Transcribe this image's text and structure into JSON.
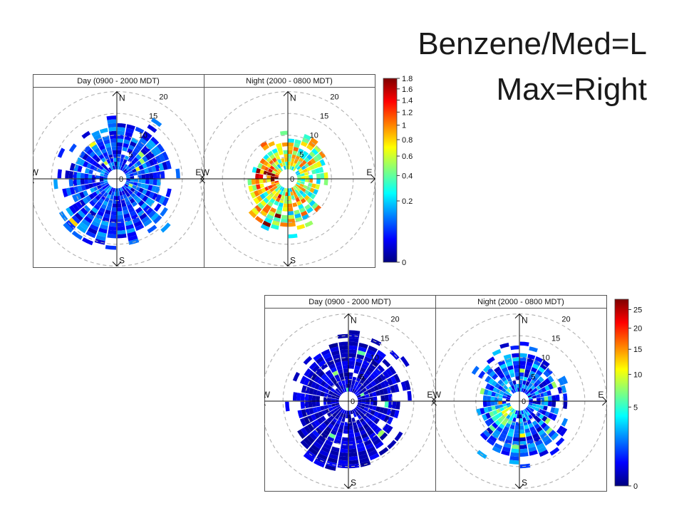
{
  "slide": {
    "title_line1": "Benzene/Med=L",
    "title_line2": "Max=Right"
  },
  "colormap": [
    "#00007f",
    "#0000ff",
    "#007fff",
    "#00ffff",
    "#7fff7f",
    "#ffff00",
    "#ff7f00",
    "#ff0000",
    "#7f0000"
  ],
  "chart_data": [
    {
      "type": "heatmap",
      "subtype": "polar",
      "panels": [
        "Day (0900 - 2000 MDT)",
        "Night (2000 - 0800 MDT)"
      ],
      "compass": [
        "N",
        "E",
        "S",
        "W"
      ],
      "radial_ticks": [
        "0",
        "5",
        "10",
        "15",
        "20"
      ],
      "radial_max": 20,
      "colorbar": {
        "ticks": [
          "1.8",
          "1.6",
          "1.4",
          "1.2",
          "1",
          "0.8",
          "0.6",
          "0.4",
          "0.2",
          "0"
        ],
        "range": [
          0,
          1.8
        ]
      },
      "day": {
        "extent": 11,
        "level": 0.18,
        "spread": 0.12
      },
      "night": {
        "extent": 8,
        "level": 0.55,
        "spread": 0.25,
        "hotspot_dir": 270
      }
    },
    {
      "type": "heatmap",
      "subtype": "polar",
      "panels": [
        "Day (0900 - 2000 MDT)",
        "Night (2000 - 0800 MDT)"
      ],
      "compass": [
        "N",
        "E",
        "S",
        "W"
      ],
      "radial_ticks": [
        "0",
        "5",
        "10",
        "15",
        "20"
      ],
      "radial_max": 20,
      "colorbar": {
        "ticks": [
          "25",
          "20",
          "15",
          "10",
          "5",
          "0"
        ],
        "range": [
          0,
          28
        ]
      },
      "day": {
        "extent": 12,
        "level": 0.08,
        "spread": 0.06
      },
      "night": {
        "extent": 9,
        "level": 0.2,
        "spread": 0.15,
        "hotspot_dir": 225
      }
    }
  ]
}
